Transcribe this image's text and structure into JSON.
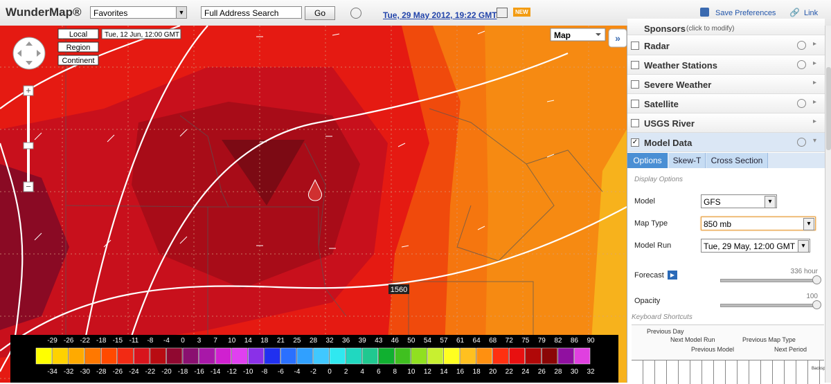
{
  "toolbar": {
    "logo": "WunderMap®",
    "favorites": "Favorites",
    "search": "Full Address Search",
    "go": "Go",
    "datetime": "Tue, 29 May 2012, 19:22 GMT",
    "new": "NEW",
    "save": "Save Preferences",
    "link": "Link"
  },
  "map": {
    "zoom_buttons": [
      "Local",
      "Region",
      "Continent"
    ],
    "valid_time": "Tue, 12 Jun, 12:00 GMT",
    "map_select": "Map",
    "contour_label": "1560",
    "legend": {
      "fahrenheit": [
        -29,
        -26,
        -22,
        -18,
        -15,
        -11,
        -8,
        -4,
        0,
        3,
        7,
        10,
        14,
        18,
        21,
        25,
        28,
        32,
        36,
        39,
        43,
        46,
        50,
        54,
        57,
        61,
        64,
        68,
        72,
        75,
        79,
        82,
        86,
        90
      ],
      "celsius": [
        -34,
        -32,
        -30,
        -28,
        -26,
        -24,
        -22,
        -20,
        -18,
        -16,
        -14,
        -12,
        -10,
        -8,
        -6,
        -4,
        -2,
        0,
        2,
        4,
        6,
        8,
        10,
        12,
        14,
        16,
        18,
        20,
        22,
        24,
        26,
        28,
        30,
        32
      ],
      "colors": [
        "#ffff00",
        "#ffd200",
        "#ffaa00",
        "#ff7800",
        "#ff4a00",
        "#f22a14",
        "#d8141c",
        "#b80c12",
        "#900830",
        "#8a1070",
        "#a818a8",
        "#d020d0",
        "#e040f0",
        "#8a30e8",
        "#2030f0",
        "#2a70ff",
        "#30a0ff",
        "#40c8ff",
        "#30e8f0",
        "#20d8c0",
        "#20c890",
        "#10b030",
        "#40c020",
        "#90e020",
        "#c8f030",
        "#ffff20",
        "#ffc020",
        "#ff9010",
        "#ff3010",
        "#e81010",
        "#b00808",
        "#8a0606",
        "#9010a0",
        "#e040e0"
      ]
    }
  },
  "panel": {
    "sponsors": "Sponsors",
    "sponsors_note": "(click to modify)",
    "layers": [
      {
        "label": "Radar",
        "checked": false,
        "clock": true
      },
      {
        "label": "Weather Stations",
        "checked": false,
        "clock": true
      },
      {
        "label": "Severe Weather",
        "checked": false,
        "clock": false
      },
      {
        "label": "Satellite",
        "checked": false,
        "clock": true
      },
      {
        "label": "USGS River",
        "checked": false,
        "clock": false
      },
      {
        "label": "Model Data",
        "checked": true,
        "clock": true
      }
    ],
    "tabs": [
      "Options",
      "Skew-T",
      "Cross Section"
    ],
    "section": "Display Options",
    "fields": [
      {
        "label": "Model",
        "value": "GFS"
      },
      {
        "label": "Map Type",
        "value": "850 mb"
      },
      {
        "label": "Model Run",
        "value": "Tue, 29 May, 12:00 GMT"
      }
    ],
    "forecast": {
      "label": "Forecast",
      "max": "336 hour"
    },
    "opacity": {
      "label": "Opacity",
      "value": "100"
    },
    "keyboard": {
      "title": "Keyboard Shortcuts",
      "hints": [
        "Previous Day",
        "Next Model Run",
        "Previous Model",
        "Previous Map Type",
        "Next Period",
        "Backspace"
      ]
    }
  }
}
